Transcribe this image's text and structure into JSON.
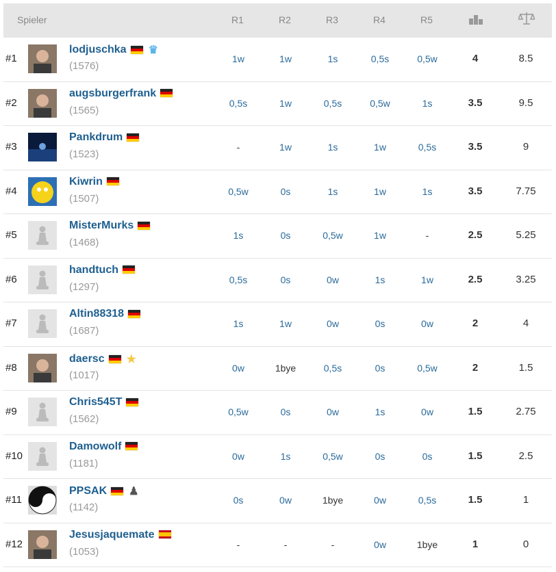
{
  "header": {
    "player": "Spieler",
    "rounds": [
      "R1",
      "R2",
      "R3",
      "R4",
      "R5"
    ],
    "points_icon": "podium-icon",
    "tiebreak_icon": "scales-icon"
  },
  "rows": [
    {
      "rank": "#1",
      "name": "lodjuschka",
      "rating": "(1576)",
      "flag": "de",
      "badge": "crown-icon",
      "avatar": "photo",
      "results": [
        "1w",
        "1w",
        "1s",
        "0,5s",
        "0,5w"
      ],
      "points": "4",
      "tiebreak": "8.5"
    },
    {
      "rank": "#2",
      "name": "augsburgerfrank",
      "rating": "(1565)",
      "flag": "de",
      "avatar": "photo",
      "results": [
        "0,5s",
        "1w",
        "0,5s",
        "0,5w",
        "1s"
      ],
      "points": "3.5",
      "tiebreak": "9.5"
    },
    {
      "rank": "#3",
      "name": "Pankdrum",
      "rating": "(1523)",
      "flag": "de",
      "avatar": "night",
      "results": [
        "-",
        "1w",
        "1s",
        "1w",
        "0,5s"
      ],
      "points": "3.5",
      "tiebreak": "9"
    },
    {
      "rank": "#4",
      "name": "Kiwrin",
      "rating": "(1507)",
      "flag": "de",
      "avatar": "cartoon",
      "results": [
        "0,5w",
        "0s",
        "1s",
        "1w",
        "1s"
      ],
      "points": "3.5",
      "tiebreak": "7.75"
    },
    {
      "rank": "#5",
      "name": "MisterMurks",
      "rating": "(1468)",
      "flag": "de",
      "avatar": "pawn",
      "results": [
        "1s",
        "0s",
        "0,5w",
        "1w",
        "-"
      ],
      "points": "2.5",
      "tiebreak": "5.25"
    },
    {
      "rank": "#6",
      "name": "handtuch",
      "rating": "(1297)",
      "flag": "de",
      "avatar": "pawn",
      "results": [
        "0,5s",
        "0s",
        "0w",
        "1s",
        "1w"
      ],
      "points": "2.5",
      "tiebreak": "3.25"
    },
    {
      "rank": "#7",
      "name": "Altin88318",
      "rating": "(1687)",
      "flag": "de",
      "avatar": "pawn",
      "results": [
        "1s",
        "1w",
        "0w",
        "0s",
        "0w"
      ],
      "points": "2",
      "tiebreak": "4"
    },
    {
      "rank": "#8",
      "name": "daersc",
      "rating": "(1017)",
      "flag": "de",
      "badge": "star-icon",
      "avatar": "photo",
      "results": [
        "0w",
        "1bye",
        "0,5s",
        "0s",
        "0,5w"
      ],
      "points": "2",
      "tiebreak": "1.5"
    },
    {
      "rank": "#9",
      "name": "Chris545T",
      "rating": "(1562)",
      "flag": "de",
      "avatar": "pawn",
      "results": [
        "0,5w",
        "0s",
        "0w",
        "1s",
        "0w"
      ],
      "points": "1.5",
      "tiebreak": "2.75"
    },
    {
      "rank": "#10",
      "name": "Damowolf",
      "rating": "(1181)",
      "flag": "de",
      "avatar": "pawn",
      "results": [
        "0w",
        "1s",
        "0,5w",
        "0s",
        "0s"
      ],
      "points": "1.5",
      "tiebreak": "2.5"
    },
    {
      "rank": "#11",
      "name": "PPSAK",
      "rating": "(1142)",
      "flag": "de",
      "badge": "pawn-badge-icon",
      "avatar": "yinyang",
      "results": [
        "0s",
        "0w",
        "1bye",
        "0w",
        "0,5s"
      ],
      "points": "1.5",
      "tiebreak": "1"
    },
    {
      "rank": "#12",
      "name": "Jesusjaquemate",
      "rating": "(1053)",
      "flag": "es",
      "avatar": "photo",
      "results": [
        "-",
        "-",
        "-",
        "0w",
        "1bye"
      ],
      "points": "1",
      "tiebreak": "0"
    }
  ]
}
